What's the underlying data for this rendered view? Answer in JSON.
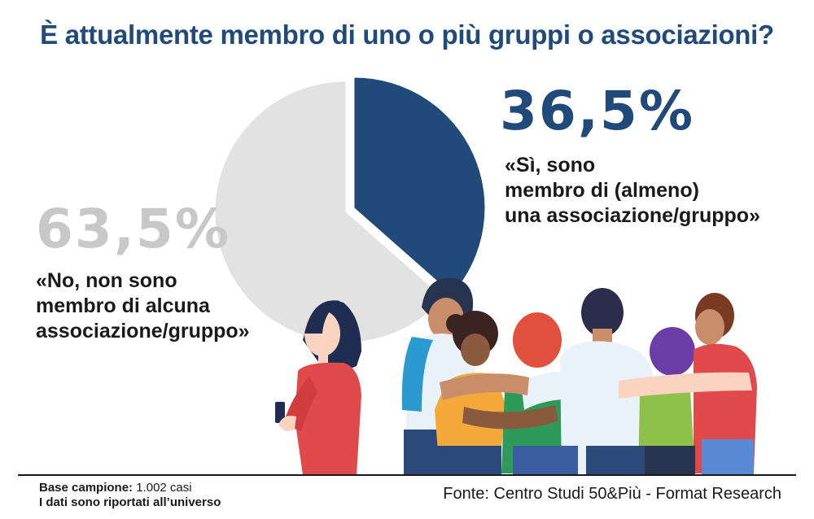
{
  "title": "È attualmente membro di uno o più gruppi o associazioni?",
  "chart_data": {
    "type": "pie",
    "title": "È attualmente membro di uno o più gruppi o associazioni?",
    "slices": [
      {
        "label": "«Sì, sono membro di (almeno) una associazione/gruppo»",
        "value": 36.5,
        "display": "36,5%",
        "color": "#1f4a7a"
      },
      {
        "label": "«No, non sono membro di alcuna associazione/gruppo»",
        "value": 63.5,
        "display": "63,5%",
        "color": "#e3e2e3"
      }
    ]
  },
  "labels": {
    "yes_pct": "36,5%",
    "yes_lines": [
      "«Sì, sono",
      "membro di (almeno)",
      "una associazione/gruppo»"
    ],
    "no_pct": "63,5%",
    "no_lines": [
      "«No, non sono",
      "membro di alcuna",
      "associazione/gruppo»"
    ]
  },
  "footer": {
    "base_label": "Base campione:",
    "base_value": "1.002 casi",
    "note": "I dati sono riportati all’universo",
    "source": "Fonte: Centro Studi 50&Più - Format Research"
  },
  "colors": {
    "accent": "#1f4a7a",
    "muted": "#c8c8c8",
    "pie_no": "#e3e2e3"
  }
}
